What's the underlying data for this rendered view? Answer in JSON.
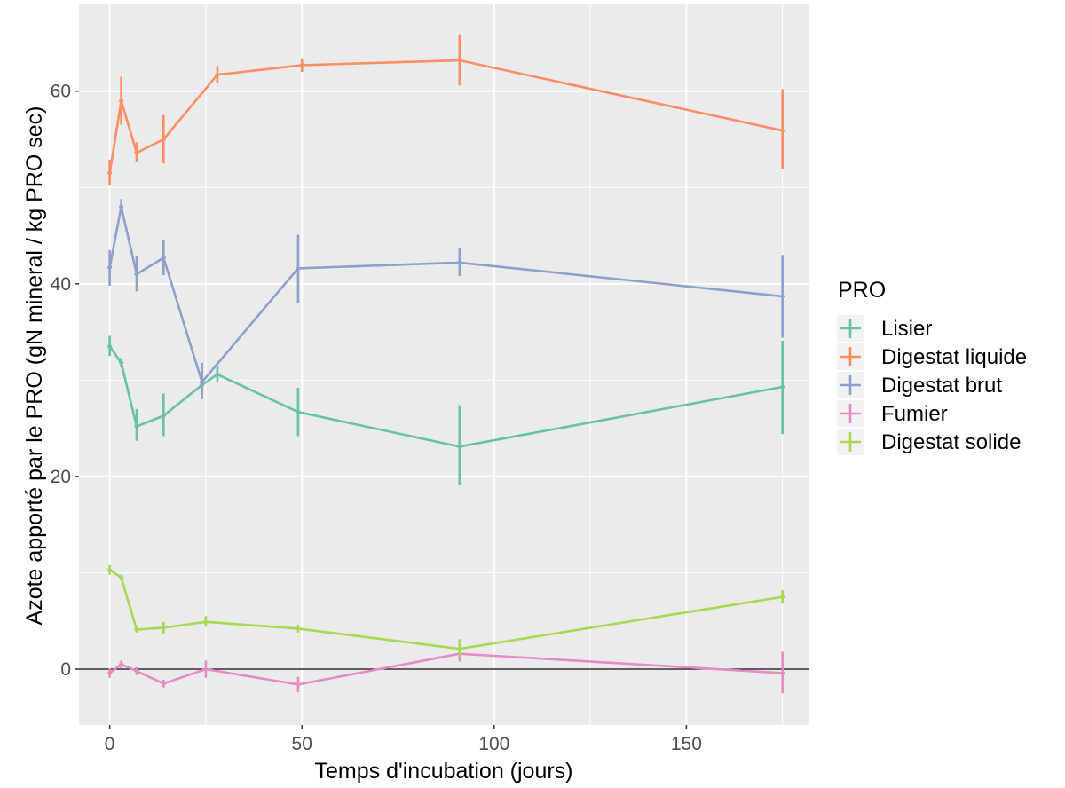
{
  "chart_data": {
    "type": "line",
    "xlabel": "Temps d'incubation (jours)",
    "ylabel": "Azote apporté par le PRO (gN mineral / kg PRO sec)",
    "xlim": [
      -8,
      182
    ],
    "ylim": [
      -5.8,
      69
    ],
    "x_ticks": [
      0,
      50,
      100,
      150
    ],
    "y_ticks": [
      0,
      20,
      40,
      60
    ],
    "x_tick_labels": [
      "0",
      "50",
      "100",
      "150"
    ],
    "y_tick_labels": [
      "0",
      "20",
      "40",
      "60"
    ],
    "grid": true,
    "hline": 0,
    "legend": {
      "title": "PRO",
      "position": "right"
    },
    "series": [
      {
        "name": "Lisier",
        "color": "#66C2A5",
        "points": [
          {
            "x": 0,
            "y": 33.5,
            "ymin": 32.5,
            "ymax": 34.6
          },
          {
            "x": 3,
            "y": 31.8,
            "ymin": 31.3,
            "ymax": 32.3
          },
          {
            "x": 7,
            "y": 25.2,
            "ymin": 23.7,
            "ymax": 27.0
          },
          {
            "x": 14,
            "y": 26.3,
            "ymin": 24.2,
            "ymax": 28.6
          },
          {
            "x": 24,
            "y": 29.5,
            "ymin": 28.7,
            "ymax": 30.3
          },
          {
            "x": 28,
            "y": 30.6,
            "ymin": 29.8,
            "ymax": 31.5
          },
          {
            "x": 49,
            "y": 26.7,
            "ymin": 24.2,
            "ymax": 29.2
          },
          {
            "x": 91,
            "y": 23.1,
            "ymin": 19.1,
            "ymax": 27.4
          },
          {
            "x": 175,
            "y": 29.3,
            "ymin": 24.4,
            "ymax": 34.1
          }
        ]
      },
      {
        "name": "Digestat liquide",
        "color": "#FC8D62",
        "points": [
          {
            "x": 0,
            "y": 51.5,
            "ymin": 50.2,
            "ymax": 52.9
          },
          {
            "x": 3,
            "y": 59.0,
            "ymin": 56.5,
            "ymax": 61.5
          },
          {
            "x": 7,
            "y": 53.6,
            "ymin": 52.7,
            "ymax": 54.7
          },
          {
            "x": 14,
            "y": 55.0,
            "ymin": 52.5,
            "ymax": 57.5
          },
          {
            "x": 28,
            "y": 61.7,
            "ymin": 60.8,
            "ymax": 62.6
          },
          {
            "x": 50,
            "y": 62.7,
            "ymin": 62.0,
            "ymax": 63.4
          },
          {
            "x": 91,
            "y": 63.2,
            "ymin": 60.6,
            "ymax": 65.9
          },
          {
            "x": 175,
            "y": 55.9,
            "ymin": 51.9,
            "ymax": 60.2
          }
        ]
      },
      {
        "name": "Digestat brut",
        "color": "#8DA0CB",
        "points": [
          {
            "x": 0,
            "y": 41.7,
            "ymin": 39.8,
            "ymax": 43.5
          },
          {
            "x": 3,
            "y": 48.0,
            "ymin": 47.2,
            "ymax": 48.8
          },
          {
            "x": 7,
            "y": 41.0,
            "ymin": 39.2,
            "ymax": 42.9
          },
          {
            "x": 14,
            "y": 42.7,
            "ymin": 40.9,
            "ymax": 44.6
          },
          {
            "x": 24,
            "y": 29.8,
            "ymin": 28.0,
            "ymax": 31.8
          },
          {
            "x": 49,
            "y": 41.6,
            "ymin": 38.0,
            "ymax": 45.1
          },
          {
            "x": 91,
            "y": 42.2,
            "ymin": 40.8,
            "ymax": 43.7
          },
          {
            "x": 175,
            "y": 38.7,
            "ymin": 34.4,
            "ymax": 43.0
          }
        ]
      },
      {
        "name": "Fumier",
        "color": "#E78AC3",
        "points": [
          {
            "x": 0,
            "y": -0.4,
            "ymin": -0.9,
            "ymax": 0.1
          },
          {
            "x": 3,
            "y": 0.5,
            "ymin": 0.1,
            "ymax": 0.9
          },
          {
            "x": 7,
            "y": -0.2,
            "ymin": -0.6,
            "ymax": 0.2
          },
          {
            "x": 14,
            "y": -1.5,
            "ymin": -1.9,
            "ymax": -1.1
          },
          {
            "x": 25,
            "y": 0.0,
            "ymin": -0.9,
            "ymax": 0.9
          },
          {
            "x": 49,
            "y": -1.6,
            "ymin": -2.4,
            "ymax": -0.8
          },
          {
            "x": 91,
            "y": 1.6,
            "ymin": 0.8,
            "ymax": 2.4
          },
          {
            "x": 175,
            "y": -0.4,
            "ymin": -2.5,
            "ymax": 1.8
          }
        ]
      },
      {
        "name": "Digestat solide",
        "color": "#A6D854",
        "points": [
          {
            "x": 0,
            "y": 10.3,
            "ymin": 9.8,
            "ymax": 10.8
          },
          {
            "x": 3,
            "y": 9.5,
            "ymin": 9.2,
            "ymax": 9.8
          },
          {
            "x": 7,
            "y": 4.1,
            "ymin": 3.8,
            "ymax": 4.4
          },
          {
            "x": 14,
            "y": 4.3,
            "ymin": 3.7,
            "ymax": 4.9
          },
          {
            "x": 25,
            "y": 4.9,
            "ymin": 4.4,
            "ymax": 5.5
          },
          {
            "x": 49,
            "y": 4.2,
            "ymin": 3.8,
            "ymax": 4.6
          },
          {
            "x": 91,
            "y": 2.1,
            "ymin": 1.3,
            "ymax": 3.1
          },
          {
            "x": 175,
            "y": 7.5,
            "ymin": 6.8,
            "ymax": 8.2
          }
        ]
      }
    ]
  }
}
